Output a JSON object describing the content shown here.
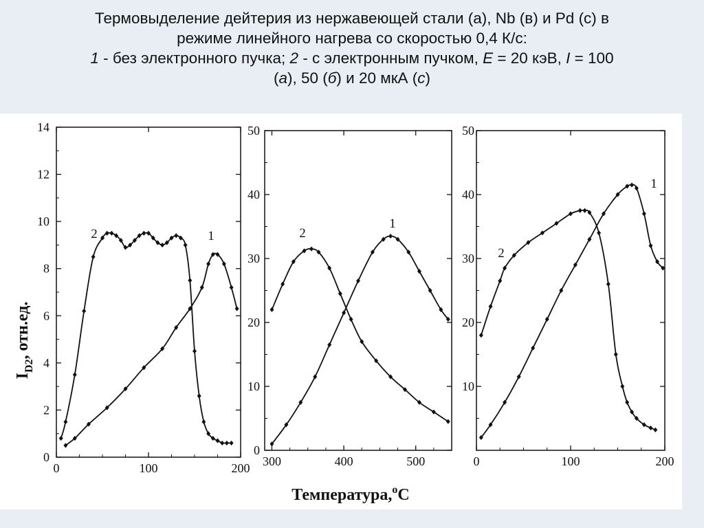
{
  "title": {
    "line1": "Термовыделение дейтерия из нержавеющей стали (а), Nb (в) и Pd (с) в",
    "line2": "режиме линейного нагрева со скоростью 0,4 К/с:",
    "line3_num1": "1",
    "line3_a": " - без электронного пучка; ",
    "line3_num2": "2",
    "line3_b": " - с электронным пучком, ",
    "line3_E": "E",
    "line3_c": " = 20 кэВ, ",
    "line3_I": "I",
    "line3_d": " = 100",
    "line4_a": "(",
    "line4_pa": "а",
    "line4_b": "), 50 (",
    "line4_pb": "б",
    "line4_c": ") и 20 мкА (",
    "line4_pc": "с",
    "line4_d": ")"
  },
  "xlabel": "Температура,",
  "xlabel_unit": "С",
  "xlabel_sup": "o",
  "ylabel": "I",
  "ylabel_sub": "D2",
  "ylabel_rest": ", отн.ед.",
  "colors": {
    "background": "#e8eef3",
    "figure": "#ffffff",
    "ink": "#111111"
  },
  "chart_data": [
    {
      "type": "line",
      "panel": "a",
      "xlim": [
        0,
        200
      ],
      "ylim": [
        0,
        14
      ],
      "xticks": [
        "0",
        "100",
        "200"
      ],
      "yticks": [
        "0",
        "2",
        "4",
        "6",
        "8",
        "10",
        "12",
        "14"
      ],
      "series": [
        {
          "name": "1",
          "x": [
            10,
            20,
            35,
            55,
            75,
            95,
            115,
            130,
            145,
            158,
            165,
            170,
            175,
            182,
            190,
            196
          ],
          "y": [
            0.5,
            0.8,
            1.4,
            2.1,
            2.9,
            3.8,
            4.6,
            5.5,
            6.3,
            7.2,
            8.2,
            8.6,
            8.6,
            8.2,
            7.2,
            6.3
          ]
        },
        {
          "name": "2",
          "x": [
            5,
            10,
            20,
            30,
            40,
            50,
            55,
            60,
            65,
            70,
            75,
            80,
            85,
            90,
            95,
            100,
            105,
            110,
            115,
            120,
            125,
            130,
            135,
            140,
            145,
            150,
            155,
            160,
            165,
            170,
            175,
            180,
            185,
            190
          ],
          "y": [
            0.8,
            1.5,
            3.5,
            6.2,
            8.5,
            9.3,
            9.5,
            9.5,
            9.4,
            9.2,
            8.9,
            9.0,
            9.2,
            9.4,
            9.5,
            9.5,
            9.3,
            9.1,
            9.0,
            9.1,
            9.3,
            9.4,
            9.3,
            9.0,
            7.5,
            4.5,
            2.6,
            1.5,
            1.0,
            0.8,
            0.7,
            0.6,
            0.6,
            0.6
          ]
        }
      ],
      "curve_labels": [
        "2",
        "1"
      ]
    },
    {
      "type": "line",
      "panel": "b",
      "xlim": [
        290,
        550
      ],
      "ylim": [
        0,
        50
      ],
      "xticks": [
        "300",
        "400",
        "500"
      ],
      "yticks": [
        "0",
        "10",
        "20",
        "30",
        "40",
        "50"
      ],
      "series": [
        {
          "name": "1",
          "x": [
            300,
            320,
            340,
            360,
            380,
            400,
            420,
            440,
            455,
            465,
            475,
            490,
            505,
            520,
            535,
            545
          ],
          "y": [
            1.0,
            4.0,
            7.5,
            11.5,
            16.5,
            21.5,
            26.5,
            31.0,
            33.0,
            33.5,
            33.0,
            31.0,
            28.0,
            25.0,
            22.0,
            20.5
          ]
        },
        {
          "name": "2",
          "x": [
            300,
            315,
            330,
            345,
            355,
            365,
            380,
            395,
            410,
            425,
            445,
            465,
            485,
            505,
            525,
            545
          ],
          "y": [
            22.0,
            26.0,
            29.5,
            31.2,
            31.5,
            31.0,
            28.5,
            24.5,
            20.5,
            17.0,
            14.0,
            11.5,
            9.5,
            7.5,
            6.0,
            4.5
          ]
        }
      ],
      "curve_labels": [
        "2",
        "1"
      ]
    },
    {
      "type": "line",
      "panel": "c",
      "xlim": [
        0,
        200
      ],
      "ylim": [
        0,
        50
      ],
      "xticks": [
        "0",
        "100",
        "200"
      ],
      "yticks": [
        "10",
        "20",
        "30",
        "40",
        "50"
      ],
      "series": [
        {
          "name": "1",
          "x": [
            5,
            15,
            30,
            45,
            60,
            75,
            90,
            105,
            120,
            135,
            150,
            160,
            165,
            170,
            178,
            185,
            192,
            198
          ],
          "y": [
            2.0,
            4.0,
            7.5,
            11.5,
            16.0,
            20.5,
            25.0,
            29.0,
            33.0,
            37.0,
            40.0,
            41.3,
            41.5,
            41.0,
            37.0,
            32.0,
            29.5,
            28.5
          ]
        },
        {
          "name": "2",
          "x": [
            5,
            15,
            25,
            30,
            40,
            55,
            70,
            85,
            100,
            110,
            115,
            120,
            130,
            140,
            148,
            155,
            160,
            165,
            170,
            178,
            185,
            190
          ],
          "y": [
            18.0,
            22.5,
            26.5,
            28.5,
            30.5,
            32.5,
            34.0,
            35.5,
            37.0,
            37.5,
            37.5,
            37.2,
            34.0,
            26.0,
            15.0,
            10.0,
            7.5,
            6.0,
            5.0,
            4.0,
            3.5,
            3.2
          ]
        }
      ],
      "curve_labels": [
        "2",
        "1"
      ]
    }
  ]
}
